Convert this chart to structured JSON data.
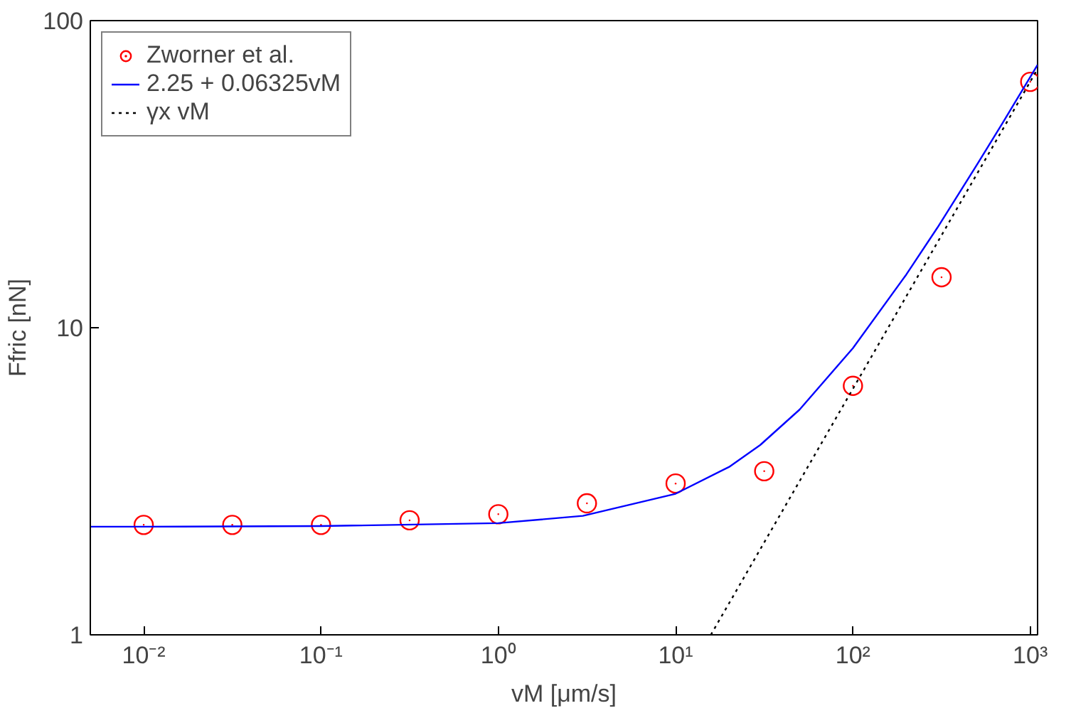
{
  "chart_data": {
    "type": "scatter",
    "xlabel": "vM [μm/s]",
    "ylabel": "Ffric [nN]",
    "log": "xy",
    "xlim": [
      0.005,
      1100
    ],
    "ylim": [
      1,
      100
    ],
    "xticks": [
      {
        "value": 0.01,
        "label": "10⁻²"
      },
      {
        "value": 0.1,
        "label": "10⁻¹"
      },
      {
        "value": 1,
        "label": "10⁰"
      },
      {
        "value": 10,
        "label": "10¹"
      },
      {
        "value": 100,
        "label": "10²"
      },
      {
        "value": 1000,
        "label": "10³"
      }
    ],
    "yticks": [
      1,
      10,
      100
    ],
    "grid": false,
    "legend": "top left",
    "series": [
      {
        "name": "Zworner et al.",
        "marker": "circle",
        "color": "#ff0000",
        "x": [
          0.01,
          0.0316,
          0.1,
          0.316,
          1,
          3.16,
          10,
          31.6,
          100,
          316,
          1000
        ],
        "values": [
          2.28,
          2.28,
          2.28,
          2.36,
          2.47,
          2.68,
          3.11,
          3.41,
          6.47,
          14.6,
          63.2
        ]
      },
      {
        "name": "2.25 + 0.06325vM",
        "type": "line",
        "line_style": "solid",
        "color": "#0000ff",
        "x": [
          0.005,
          0.01,
          0.1,
          1,
          3,
          10,
          20,
          30,
          50,
          100,
          200,
          300,
          500,
          700,
          1000,
          1100
        ],
        "values": [
          2.25,
          2.25,
          2.26,
          2.31,
          2.44,
          2.88,
          3.52,
          4.15,
          5.41,
          8.58,
          14.9,
          21.2,
          33.9,
          46.5,
          65.5,
          71.8
        ]
      },
      {
        "name": "γx vM",
        "type": "line",
        "line_style": "dotted",
        "color": "#000000",
        "x": [
          15.8,
          1100
        ],
        "values": [
          1,
          69.6
        ]
      }
    ]
  }
}
